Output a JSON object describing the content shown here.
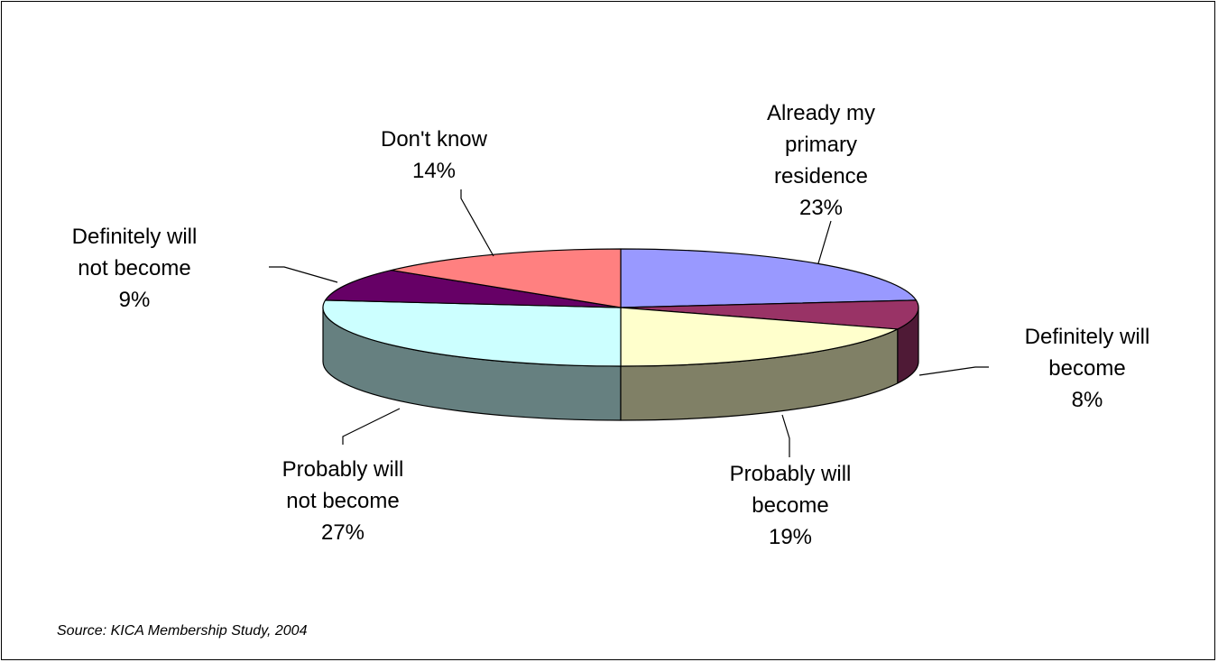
{
  "chart_data": {
    "type": "pie",
    "style": "3d",
    "title": "",
    "slices": [
      {
        "label": [
          "Already my",
          "primary",
          "residence"
        ],
        "value": 23,
        "value_label": "23%",
        "color": "#9999ff",
        "side_color": "#6b6bb3"
      },
      {
        "label": [
          "Definitely will",
          "become"
        ],
        "value": 8,
        "value_label": "8%",
        "color": "#993366",
        "side_color": "#4f1a36"
      },
      {
        "label": [
          "Probably will",
          "become"
        ],
        "value": 19,
        "value_label": "19%",
        "color": "#ffffcc",
        "side_color": "#808066"
      },
      {
        "label": [
          "Probably will",
          "not become"
        ],
        "value": 27,
        "value_label": "27%",
        "color": "#ccffff",
        "side_color": "#668080"
      },
      {
        "label": [
          "Definitely will",
          "not become"
        ],
        "value": 9,
        "value_label": "9%",
        "color": "#660066",
        "side_color": "#330033"
      },
      {
        "label": [
          "Don't know"
        ],
        "value": 14,
        "value_label": "14%",
        "color": "#ff8080",
        "side_color": "#804040"
      }
    ]
  },
  "source": "Source: KICA Membership Study, 2004"
}
